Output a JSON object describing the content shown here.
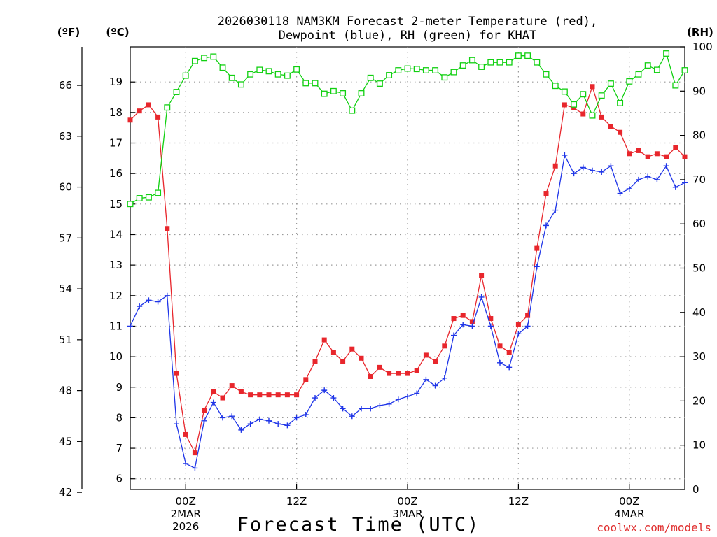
{
  "chart_data": {
    "type": "line",
    "title_line1": "2026030118 NAM3KM Forecast 2-meter Temperature (red),",
    "title_line2": "Dewpoint (blue), RH (green) for KHAT",
    "xlabel": "Forecast Time (UTC)",
    "watermark": "coolwx.com/models",
    "unit_f": "(ºF)",
    "unit_c": "(ºC)",
    "unit_rh": "(RH)",
    "x_unit": "hours after 2026-03-01 18Z",
    "xlim": [
      0,
      60
    ],
    "celsius_ylim": [
      5.65,
      20.15
    ],
    "rh_ylim": [
      0,
      100
    ],
    "x_ticks": [
      {
        "hour": 6,
        "label": "00Z",
        "sub1": "2MAR",
        "sub2": "2026"
      },
      {
        "hour": 18,
        "label": "12Z",
        "sub1": "",
        "sub2": ""
      },
      {
        "hour": 30,
        "label": "00Z",
        "sub1": "3MAR",
        "sub2": ""
      },
      {
        "hour": 42,
        "label": "12Z",
        "sub1": "",
        "sub2": ""
      },
      {
        "hour": 54,
        "label": "00Z",
        "sub1": "4MAR",
        "sub2": ""
      }
    ],
    "celsius_ticks": [
      "6",
      "7",
      "8",
      "9",
      "10",
      "11",
      "12",
      "13",
      "14",
      "15",
      "16",
      "17",
      "18",
      "19"
    ],
    "fahrenheit_ticks": [
      "42",
      "45",
      "48",
      "51",
      "54",
      "57",
      "60",
      "63",
      "66"
    ],
    "rh_ticks": [
      "0",
      "10",
      "20",
      "30",
      "40",
      "50",
      "60",
      "70",
      "80",
      "90",
      "100"
    ],
    "series": [
      {
        "name": "Temperature",
        "color": "#e8262c",
        "marker": "filled-square",
        "values": [
          17.75,
          18.05,
          18.25,
          17.85,
          14.2,
          9.45,
          7.45,
          6.85,
          8.25,
          8.85,
          8.65,
          9.05,
          8.85,
          8.75,
          8.75,
          8.75,
          8.75,
          8.75,
          8.75,
          9.25,
          9.85,
          10.55,
          10.15,
          9.85,
          10.25,
          9.95,
          9.35,
          9.65,
          9.45,
          9.45,
          9.45,
          9.55,
          10.05,
          9.85,
          10.35,
          11.25,
          11.35,
          11.15,
          12.65,
          11.25,
          10.35,
          10.15,
          11.05,
          11.35,
          13.55,
          15.35,
          16.25,
          18.25,
          18.15,
          17.95,
          18.85,
          17.85,
          17.55,
          17.35,
          16.65,
          16.75,
          16.55,
          16.65,
          16.55,
          16.85,
          16.55
        ]
      },
      {
        "name": "Dewpoint",
        "color": "#1f35e8",
        "marker": "plus",
        "values": [
          11.0,
          11.65,
          11.85,
          11.8,
          12.0,
          7.8,
          6.5,
          6.35,
          7.9,
          8.5,
          8.0,
          8.05,
          7.6,
          7.8,
          7.95,
          7.9,
          7.8,
          7.75,
          8.0,
          8.1,
          8.65,
          8.9,
          8.65,
          8.3,
          8.05,
          8.3,
          8.3,
          8.4,
          8.45,
          8.6,
          8.7,
          8.8,
          9.25,
          9.05,
          9.3,
          10.7,
          11.05,
          11.0,
          11.95,
          11.0,
          9.8,
          9.65,
          10.75,
          11.0,
          12.95,
          14.3,
          14.8,
          16.6,
          16.0,
          16.2,
          16.1,
          16.05,
          16.25,
          15.35,
          15.5,
          15.8,
          15.9,
          15.8,
          16.25,
          15.55,
          15.7
        ]
      },
      {
        "name": "RH",
        "color": "#11d011",
        "marker": "open-square",
        "values": [
          64.5,
          65.8,
          66.0,
          67.0,
          86.3,
          89.8,
          93.5,
          96.8,
          97.5,
          97.8,
          95.3,
          93.0,
          91.5,
          93.8,
          94.8,
          94.5,
          93.8,
          93.5,
          94.9,
          91.8,
          91.8,
          89.4,
          90.0,
          89.5,
          85.6,
          89.5,
          93.0,
          91.7,
          93.6,
          94.7,
          95.1,
          95.0,
          94.7,
          94.7,
          93.1,
          94.3,
          95.8,
          97.0,
          95.5,
          96.5,
          96.5,
          96.5,
          98.0,
          98.0,
          96.5,
          93.8,
          91.2,
          89.9,
          87.0,
          89.3,
          84.5,
          89.0,
          91.7,
          87.3,
          92.2,
          93.8,
          95.8,
          94.8,
          98.5,
          91.3,
          94.7
        ]
      }
    ]
  }
}
